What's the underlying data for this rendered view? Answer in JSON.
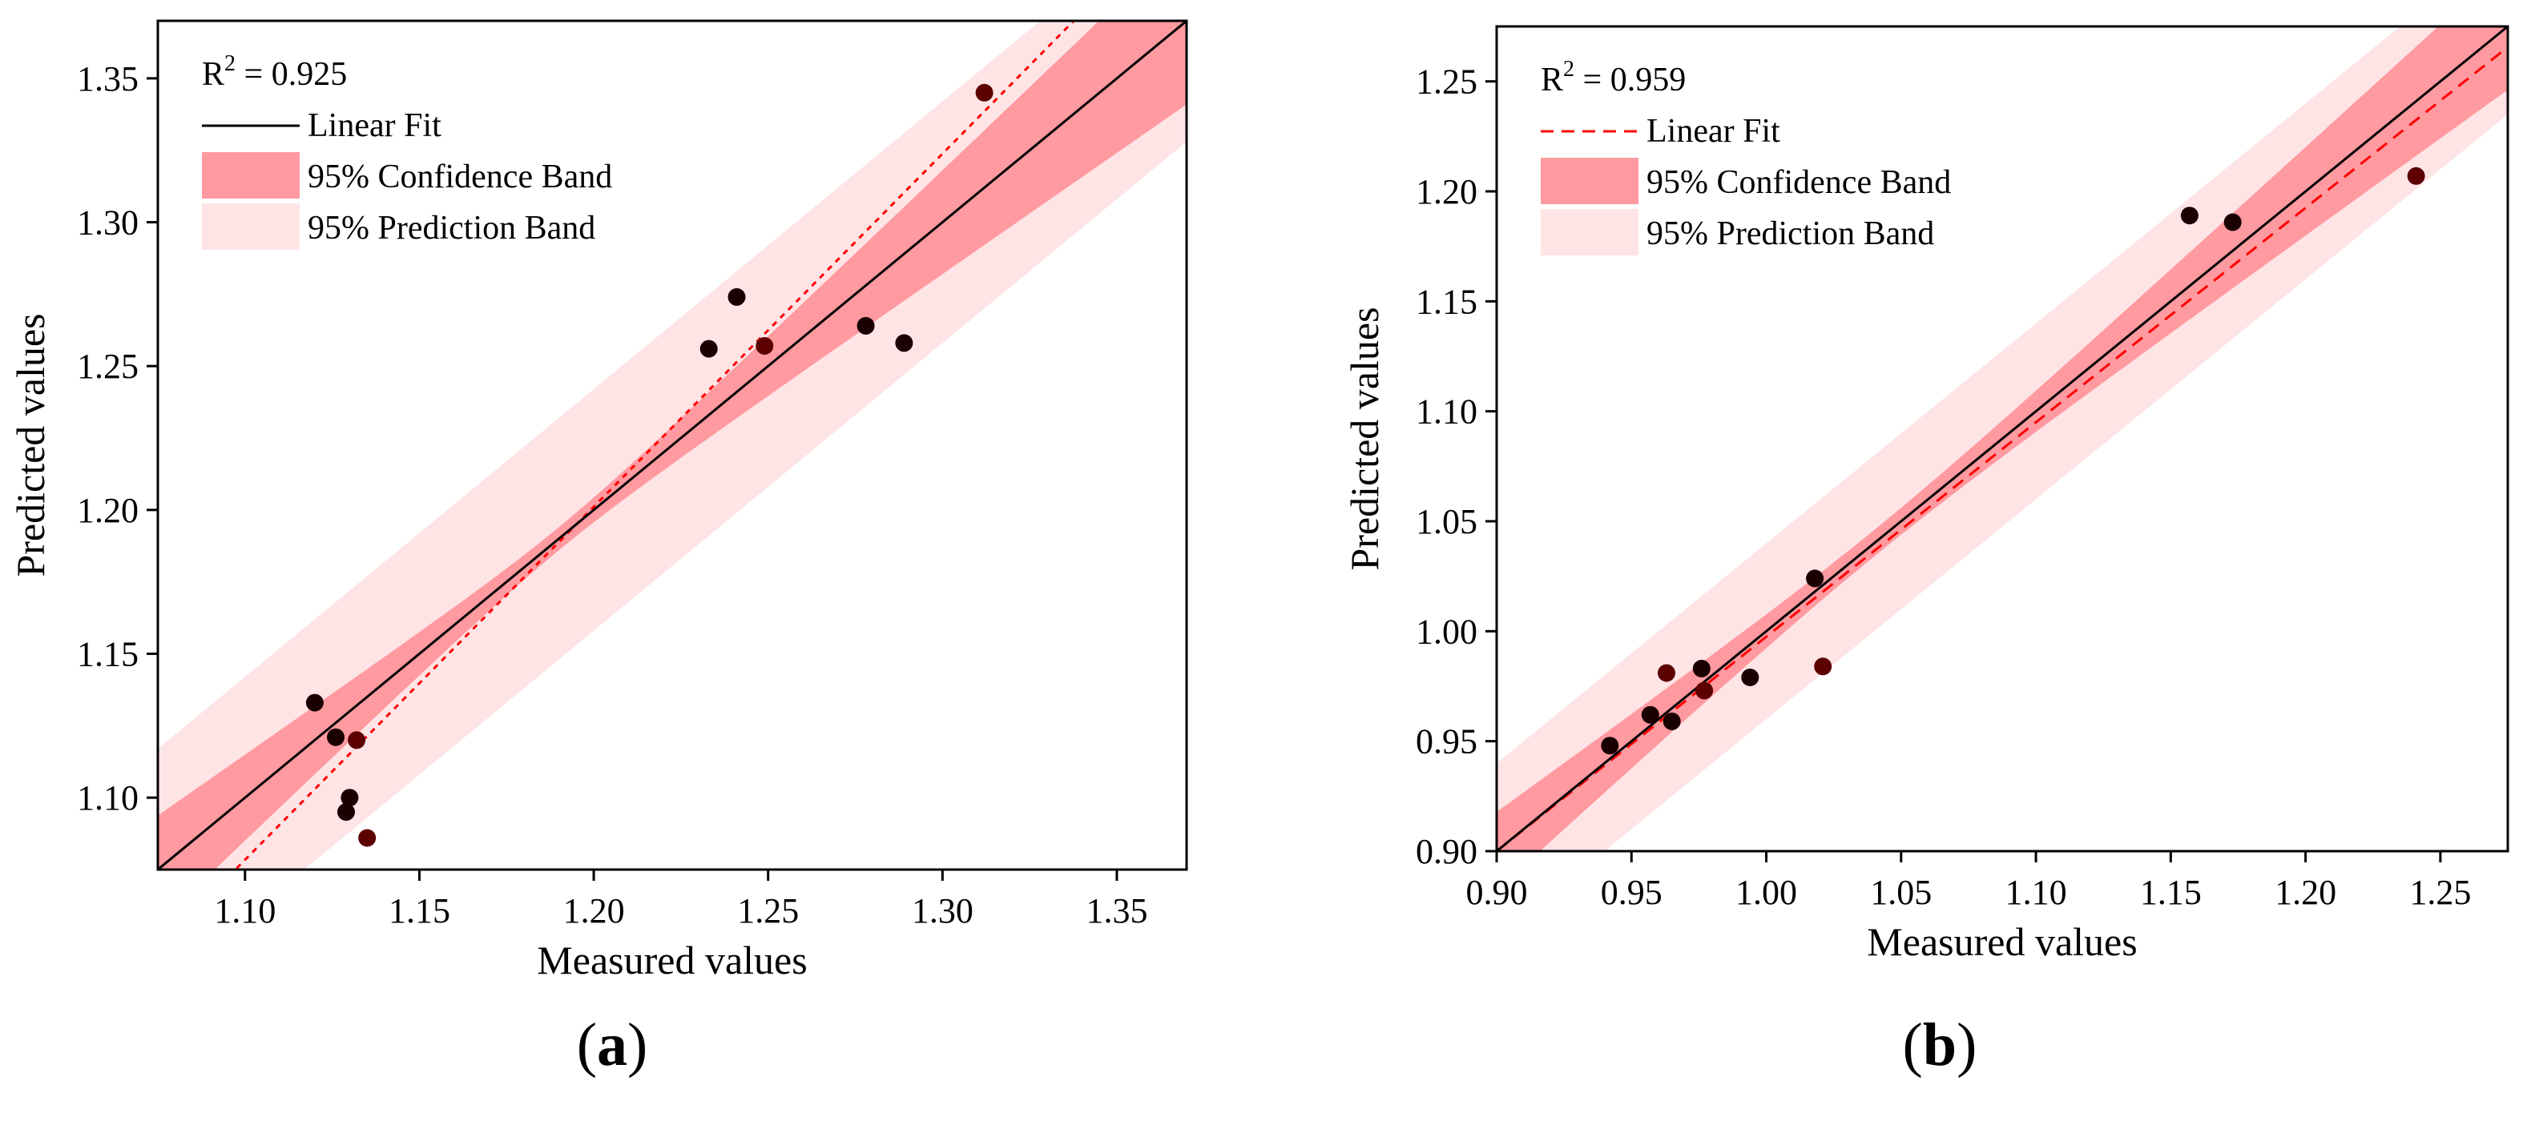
{
  "chart_data": [
    {
      "type": "scatter",
      "panel_label": "(a)",
      "panel_letter": "a",
      "xlabel": "Measured values",
      "ylabel": "Predicted values",
      "xlim": [
        1.075,
        1.37
      ],
      "ylim": [
        1.075,
        1.37
      ],
      "xticks": [
        1.1,
        1.15,
        1.2,
        1.25,
        1.3,
        1.35
      ],
      "xtick_labels": [
        "1.10",
        "1.15",
        "1.20",
        "1.25",
        "1.30",
        "1.35"
      ],
      "yticks": [
        1.1,
        1.15,
        1.2,
        1.25,
        1.3,
        1.35
      ],
      "ytick_labels": [
        "1.10",
        "1.15",
        "1.20",
        "1.25",
        "1.30",
        "1.35"
      ],
      "r2_label": "R",
      "r2_sup": "2",
      "r2_value": " = 0.925",
      "legend": [
        {
          "label": "Linear Fit",
          "type": "line",
          "color": "#000000",
          "dashed": false
        },
        {
          "label": "95% Confidence Band",
          "type": "band",
          "color": "#ff9aa0"
        },
        {
          "label": "95% Prediction Band",
          "type": "band",
          "color": "#ffe4e6"
        }
      ],
      "colors": {
        "confidence": "#ff9aa0",
        "prediction": "#ffe4e6",
        "solid_line": "#000000",
        "dashed_line": "#ff0000",
        "point": "#1a0000",
        "point_alt": "#5c0000"
      },
      "solid_line": {
        "slope": 1.0,
        "intercept": 0.0
      },
      "dashed_line": {
        "slope": 1.227,
        "intercept": -0.2713
      },
      "confidence_band": {
        "center": 1.19,
        "min_half_width": 0.004,
        "growth": 0.16
      },
      "prediction_band": {
        "half_width": 0.042
      },
      "points": [
        {
          "x": 1.12,
          "y": 1.133
        },
        {
          "x": 1.126,
          "y": 1.121
        },
        {
          "x": 1.132,
          "y": 1.12
        },
        {
          "x": 1.13,
          "y": 1.1
        },
        {
          "x": 1.129,
          "y": 1.095
        },
        {
          "x": 1.135,
          "y": 1.086
        },
        {
          "x": 1.233,
          "y": 1.256
        },
        {
          "x": 1.241,
          "y": 1.274
        },
        {
          "x": 1.249,
          "y": 1.257
        },
        {
          "x": 1.278,
          "y": 1.264
        },
        {
          "x": 1.289,
          "y": 1.258
        },
        {
          "x": 1.312,
          "y": 1.345
        }
      ]
    },
    {
      "type": "scatter",
      "panel_label": "(b)",
      "panel_letter": "b",
      "xlabel": "Measured values",
      "ylabel": "Predicted values",
      "xlim": [
        0.9,
        1.275
      ],
      "ylim": [
        0.9,
        1.275
      ],
      "xticks": [
        0.9,
        0.95,
        1.0,
        1.05,
        1.1,
        1.15,
        1.2,
        1.25
      ],
      "xtick_labels": [
        "0.90",
        "0.95",
        "1.00",
        "1.05",
        "1.10",
        "1.15",
        "1.20",
        "1.25"
      ],
      "yticks": [
        0.9,
        0.95,
        1.0,
        1.05,
        1.1,
        1.15,
        1.2,
        1.25
      ],
      "ytick_labels": [
        "0.90",
        "0.95",
        "1.00",
        "1.05",
        "1.10",
        "1.15",
        "1.20",
        "1.25"
      ],
      "r2_label": "R",
      "r2_sup": "2",
      "r2_value": " = 0.959",
      "legend": [
        {
          "label": "Linear Fit",
          "type": "line",
          "color": "#ff0000",
          "dashed": true
        },
        {
          "label": "95% Confidence Band",
          "type": "band",
          "color": "#ff9aa0"
        },
        {
          "label": "95% Prediction Band",
          "type": "band",
          "color": "#ffe4e6"
        }
      ],
      "colors": {
        "confidence": "#ff9aa0",
        "prediction": "#ffe4e6",
        "solid_line": "#000000",
        "dashed_line": "#ff0000",
        "point": "#1a0000",
        "point_alt": "#5c0000"
      },
      "solid_line": {
        "slope": 1.0,
        "intercept": 0.0
      },
      "dashed_line": {
        "slope": 0.975,
        "intercept": 0.0225
      },
      "confidence_band": {
        "center": 1.04,
        "min_half_width": 0.006,
        "growth": 0.12
      },
      "prediction_band": {
        "half_width": 0.04
      },
      "points": [
        {
          "x": 0.942,
          "y": 0.948
        },
        {
          "x": 0.957,
          "y": 0.962
        },
        {
          "x": 0.963,
          "y": 0.981
        },
        {
          "x": 0.965,
          "y": 0.959
        },
        {
          "x": 0.976,
          "y": 0.983
        },
        {
          "x": 0.977,
          "y": 0.973
        },
        {
          "x": 0.994,
          "y": 0.979
        },
        {
          "x": 1.018,
          "y": 1.024
        },
        {
          "x": 1.021,
          "y": 0.984
        },
        {
          "x": 1.157,
          "y": 1.189
        },
        {
          "x": 1.173,
          "y": 1.186
        },
        {
          "x": 1.241,
          "y": 1.207
        }
      ]
    }
  ]
}
